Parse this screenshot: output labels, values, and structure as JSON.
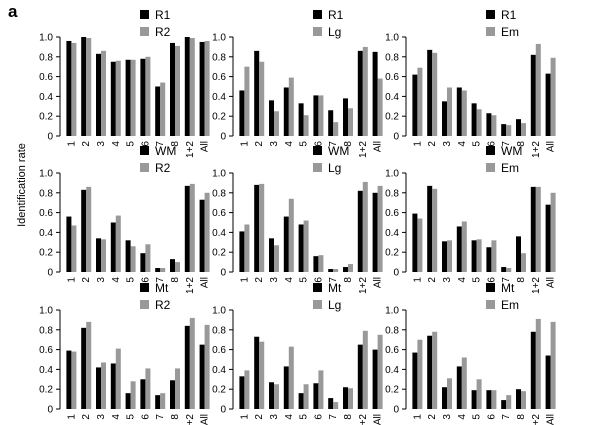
{
  "figure": {
    "panel_letter": "a",
    "ylabel": "Identification rate"
  },
  "colors": {
    "series1": "#000000",
    "series2": "#999999"
  },
  "chart_data": [
    {
      "type": "bar",
      "categories": [
        "1",
        "2",
        "3",
        "4",
        "5",
        "6",
        "7",
        "8",
        "1+2",
        "All"
      ],
      "ylim": [
        0,
        1.0
      ],
      "yticks": [
        "0",
        "0.2",
        "0.4",
        "0.6",
        "0.8",
        "1.0"
      ],
      "series": [
        {
          "name": "R1",
          "values": [
            0.96,
            1.0,
            0.83,
            0.75,
            0.77,
            0.78,
            0.5,
            0.94,
            1.0,
            0.95
          ]
        },
        {
          "name": "R2",
          "values": [
            0.94,
            0.99,
            0.86,
            0.76,
            0.77,
            0.8,
            0.54,
            0.91,
            0.99,
            0.96
          ]
        }
      ]
    },
    {
      "type": "bar",
      "categories": [
        "1",
        "2",
        "3",
        "4",
        "5",
        "6",
        "7",
        "8",
        "1+2",
        "All"
      ],
      "ylim": [
        0,
        1.0
      ],
      "yticks": [
        "0",
        "0.2",
        "0.4",
        "0.6",
        "0.8",
        "1.0"
      ],
      "series": [
        {
          "name": "R1",
          "values": [
            0.46,
            0.86,
            0.36,
            0.49,
            0.33,
            0.41,
            0.26,
            0.38,
            0.86,
            0.85
          ]
        },
        {
          "name": "Lg",
          "values": [
            0.7,
            0.75,
            0.25,
            0.59,
            0.21,
            0.41,
            0.14,
            0.28,
            0.9,
            0.58
          ]
        }
      ]
    },
    {
      "type": "bar",
      "categories": [
        "1",
        "2",
        "3",
        "4",
        "5",
        "6",
        "7",
        "8",
        "1+2",
        "All"
      ],
      "ylim": [
        0,
        1.0
      ],
      "yticks": [
        "0",
        "0.2",
        "0.4",
        "0.6",
        "0.8",
        "1.0"
      ],
      "series": [
        {
          "name": "R1",
          "values": [
            0.62,
            0.87,
            0.35,
            0.49,
            0.33,
            0.23,
            0.12,
            0.17,
            0.82,
            0.63
          ]
        },
        {
          "name": "Em",
          "values": [
            0.69,
            0.84,
            0.49,
            0.46,
            0.27,
            0.21,
            0.11,
            0.13,
            0.93,
            0.79
          ]
        }
      ]
    },
    {
      "type": "bar",
      "categories": [
        "1",
        "2",
        "3",
        "4",
        "5",
        "6",
        "7",
        "8",
        "1+2",
        "All"
      ],
      "ylim": [
        0,
        1.0
      ],
      "yticks": [
        "0",
        "0.2",
        "0.4",
        "0.6",
        "0.8",
        "1.0"
      ],
      "series": [
        {
          "name": "WM",
          "values": [
            0.56,
            0.83,
            0.34,
            0.5,
            0.32,
            0.19,
            0.04,
            0.13,
            0.87,
            0.73
          ]
        },
        {
          "name": "R2",
          "values": [
            0.47,
            0.86,
            0.33,
            0.57,
            0.26,
            0.28,
            0.04,
            0.1,
            0.89,
            0.8
          ]
        }
      ]
    },
    {
      "type": "bar",
      "categories": [
        "1",
        "2",
        "3",
        "4",
        "5",
        "6",
        "7",
        "8",
        "1+2",
        "All"
      ],
      "ylim": [
        0,
        1.0
      ],
      "yticks": [
        "0",
        "0.2",
        "0.4",
        "0.6",
        "0.8",
        "1.0"
      ],
      "series": [
        {
          "name": "WM",
          "values": [
            0.41,
            0.88,
            0.34,
            0.56,
            0.48,
            0.16,
            0.03,
            0.05,
            0.82,
            0.8
          ]
        },
        {
          "name": "Lg",
          "values": [
            0.48,
            0.89,
            0.27,
            0.74,
            0.52,
            0.17,
            0.03,
            0.08,
            0.91,
            0.87
          ]
        }
      ]
    },
    {
      "type": "bar",
      "categories": [
        "1",
        "2",
        "3",
        "4",
        "5",
        "6",
        "7",
        "8",
        "1+2",
        "All"
      ],
      "ylim": [
        0,
        1.0
      ],
      "yticks": [
        "0",
        "0.2",
        "0.4",
        "0.6",
        "0.8",
        "1.0"
      ],
      "series": [
        {
          "name": "WM",
          "values": [
            0.59,
            0.87,
            0.31,
            0.46,
            0.32,
            0.25,
            0.05,
            0.36,
            0.86,
            0.68
          ]
        },
        {
          "name": "Em",
          "values": [
            0.54,
            0.84,
            0.32,
            0.51,
            0.33,
            0.32,
            0.04,
            0.19,
            0.86,
            0.8
          ]
        }
      ]
    },
    {
      "type": "bar",
      "categories": [
        "1",
        "2",
        "3",
        "4",
        "5",
        "6",
        "7",
        "8",
        "1+2",
        "All"
      ],
      "ylim": [
        0,
        1.0
      ],
      "yticks": [
        "0",
        "0.2",
        "0.4",
        "0.6",
        "0.8",
        "1.0"
      ],
      "series": [
        {
          "name": "Mt",
          "values": [
            0.59,
            0.82,
            0.42,
            0.46,
            0.16,
            0.3,
            0.14,
            0.29,
            0.84,
            0.65
          ]
        },
        {
          "name": "R2",
          "values": [
            0.58,
            0.88,
            0.47,
            0.61,
            0.28,
            0.41,
            0.16,
            0.41,
            0.92,
            0.85
          ]
        }
      ]
    },
    {
      "type": "bar",
      "categories": [
        "1",
        "2",
        "3",
        "4",
        "5",
        "6",
        "7",
        "8",
        "1+2",
        "All"
      ],
      "ylim": [
        0,
        1.0
      ],
      "yticks": [
        "0",
        "0.2",
        "0.4",
        "0.6",
        "0.8",
        "1.0"
      ],
      "series": [
        {
          "name": "Mt",
          "values": [
            0.33,
            0.73,
            0.27,
            0.43,
            0.16,
            0.26,
            0.11,
            0.22,
            0.65,
            0.6
          ]
        },
        {
          "name": "Lg",
          "values": [
            0.39,
            0.68,
            0.25,
            0.63,
            0.25,
            0.39,
            0.07,
            0.21,
            0.79,
            0.75
          ]
        }
      ]
    },
    {
      "type": "bar",
      "categories": [
        "1",
        "2",
        "3",
        "4",
        "5",
        "6",
        "7",
        "8",
        "1+2",
        "All"
      ],
      "ylim": [
        0,
        1.0
      ],
      "yticks": [
        "0",
        "0.2",
        "0.4",
        "0.6",
        "0.8",
        "1.0"
      ],
      "series": [
        {
          "name": "Mt",
          "values": [
            0.57,
            0.74,
            0.22,
            0.43,
            0.19,
            0.19,
            0.09,
            0.2,
            0.78,
            0.54
          ]
        },
        {
          "name": "Em",
          "values": [
            0.7,
            0.78,
            0.31,
            0.52,
            0.3,
            0.19,
            0.14,
            0.18,
            0.91,
            0.88
          ]
        }
      ]
    }
  ]
}
